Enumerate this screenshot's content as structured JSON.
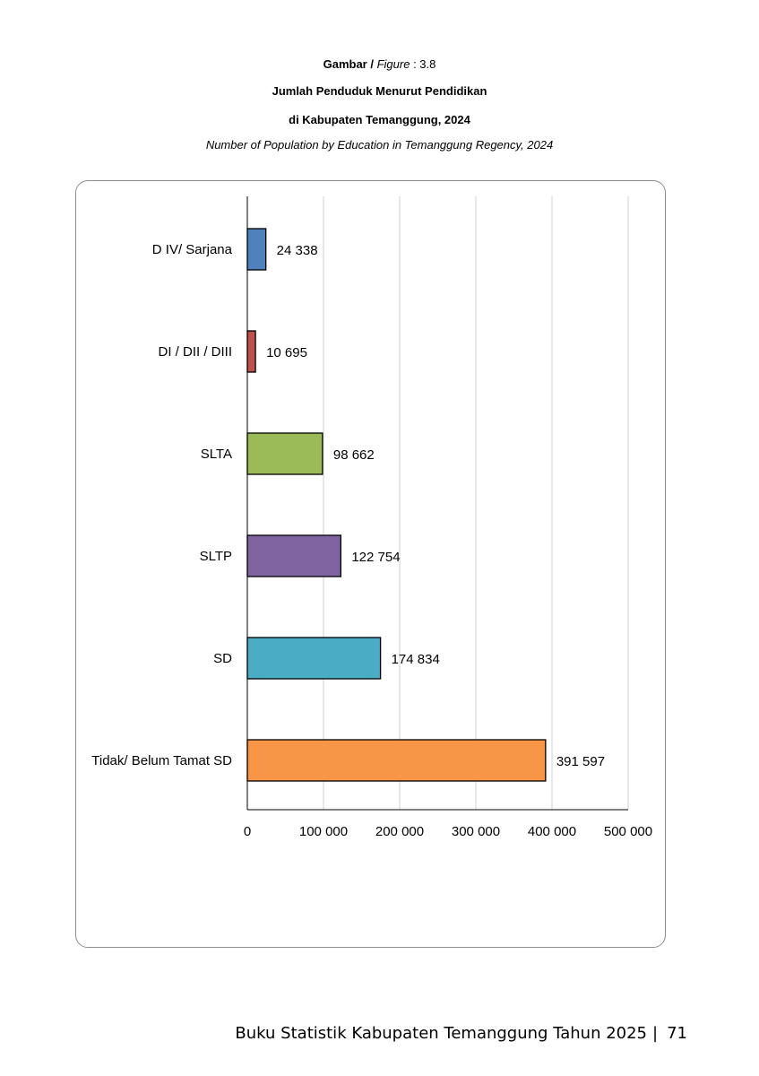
{
  "figure": {
    "label_bold": "Gambar /",
    "label_italic": "Figure",
    "label_number": ": 3.8",
    "title": "Jumlah Penduduk Menurut Pendidikan",
    "subtitle": "di Kabupaten Temanggung, 2024",
    "title_en": "Number of Population by Education in Temanggung Regency, 2024"
  },
  "chart_data": {
    "type": "bar",
    "orientation": "horizontal",
    "categories": [
      "D IV/ Sarjana",
      "DI / DII / DIII",
      "SLTA",
      "SLTP",
      "SD",
      "Tidak/ Belum Tamat SD"
    ],
    "values": [
      24338,
      10695,
      98662,
      122754,
      174834,
      391597
    ],
    "value_labels": [
      "24 338",
      "10 695",
      "98 662",
      "122 754",
      "174 834",
      "391 597"
    ],
    "colors": [
      "#4f81bd",
      "#c0504d",
      "#9bbb59",
      "#8064a2",
      "#4bacc6",
      "#f79646"
    ],
    "xlim": [
      0,
      500000
    ],
    "x_ticks": [
      0,
      100000,
      200000,
      300000,
      400000,
      500000
    ],
    "x_tick_labels": [
      "0",
      "100 000",
      "200 000",
      "300 000",
      "400 000",
      "500 000"
    ],
    "grid": true,
    "legend": "none"
  },
  "footer": {
    "text": "Buku Statistik Kabupaten Temanggung Tahun 2025",
    "page": "71"
  }
}
